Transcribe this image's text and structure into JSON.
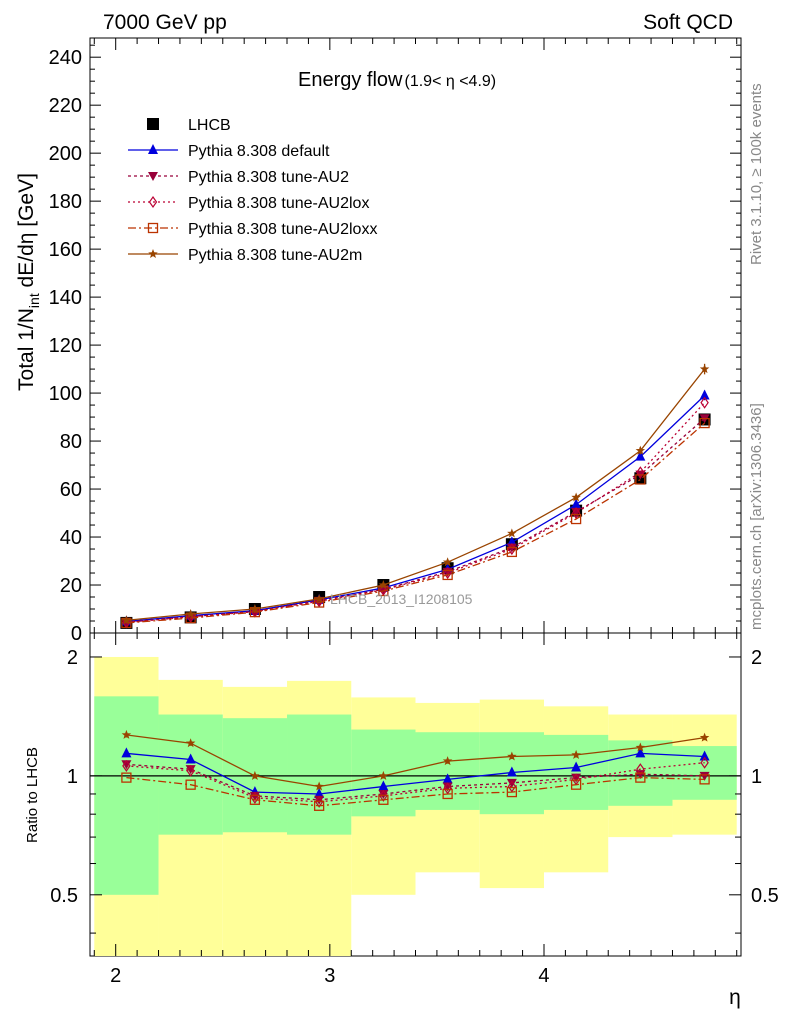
{
  "header": {
    "left": "7000 GeV pp",
    "right": "Soft QCD"
  },
  "side_labels": {
    "rivet": "Rivet 3.1.10, ≥ 100k events",
    "mcplots": "mcplots.cern.ch [arXiv:1306.3436]"
  },
  "chart_data": [
    {
      "type": "line",
      "title": "Energy flow",
      "title_suffix": "(1.9< η <4.9)",
      "ylabel": "Total 1/N",
      "ylabel_sub": "int",
      "ylabel_suffix": " dE/dη [GeV]",
      "watermark": "LHCB_2013_I1208105",
      "xlim": [
        1.88,
        4.92
      ],
      "ylim": [
        0,
        248
      ],
      "x_ticks": [
        2,
        3,
        4
      ],
      "x_tick_labels": [
        "2",
        "3",
        "4"
      ],
      "y_ticks": [
        0,
        20,
        40,
        60,
        80,
        100,
        120,
        140,
        160,
        180,
        200,
        220,
        240
      ],
      "y_tick_labels": [
        "0",
        "20",
        "40",
        "60",
        "80",
        "100",
        "120",
        "140",
        "160",
        "180",
        "200",
        "220",
        "240"
      ],
      "x": [
        2.05,
        2.35,
        2.65,
        2.95,
        3.25,
        3.55,
        3.85,
        4.15,
        4.45,
        4.75
      ],
      "legend_position": "top-left",
      "series": [
        {
          "name": "LHCB",
          "color": "#000000",
          "marker": "square-filled",
          "values": [
            4.2,
            6.5,
            10.0,
            15.0,
            20.0,
            27.0,
            37.0,
            51.0,
            64.5,
            89.0
          ]
        },
        {
          "name": "Pythia 8.308 default",
          "color": "#0000dd",
          "marker": "triangle-up-filled",
          "dash": "",
          "values": [
            4.8,
            7.2,
            9.3,
            13.8,
            18.8,
            26.5,
            37.8,
            53.5,
            73.5,
            99.0
          ]
        },
        {
          "name": "Pythia 8.308 tune-AU2",
          "color": "#99003a",
          "marker": "triangle-down-filled",
          "dash": "3,3",
          "values": [
            4.5,
            6.8,
            9.0,
            13.4,
            18.2,
            25.5,
            35.6,
            50.5,
            66.0,
            89.5
          ]
        },
        {
          "name": "Pythia 8.308 tune-AU2lox",
          "color": "#bb0033",
          "marker": "diamond-open",
          "dash": "2,3",
          "values": [
            4.4,
            6.7,
            8.9,
            13.2,
            18.0,
            25.0,
            35.0,
            50.0,
            67.0,
            96.0
          ]
        },
        {
          "name": "Pythia 8.308 tune-AU2loxx",
          "color": "#bb3300",
          "marker": "square-open",
          "dash": "8,3,2,3",
          "values": [
            4.2,
            6.2,
            8.7,
            12.7,
            17.5,
            24.2,
            33.8,
            47.5,
            64.0,
            87.5
          ]
        },
        {
          "name": "Pythia 8.308 tune-AU2m",
          "color": "#994400",
          "marker": "star",
          "dash": "",
          "values": [
            5.3,
            7.9,
            10.0,
            14.2,
            20.0,
            29.5,
            41.5,
            56.5,
            76.0,
            110.0
          ]
        }
      ]
    },
    {
      "type": "line",
      "ylabel": "Ratio to LHCB",
      "xlabel": "η",
      "log_scale_y": true,
      "ylim": [
        0.35,
        2.3
      ],
      "y_ticks": [
        0.5,
        1,
        2
      ],
      "y_tick_labels": [
        "0.5",
        "1",
        "2"
      ],
      "reference_line": 1,
      "bands": {
        "edges": [
          1.9,
          2.2,
          2.5,
          2.8,
          3.1,
          3.4,
          3.7,
          4.0,
          4.3,
          4.6,
          4.9
        ],
        "inner_lo": [
          0.5,
          0.71,
          0.72,
          0.71,
          0.79,
          0.82,
          0.8,
          0.82,
          0.84,
          0.87
        ],
        "inner_hi": [
          1.59,
          1.43,
          1.4,
          1.43,
          1.31,
          1.29,
          1.29,
          1.27,
          1.23,
          1.19
        ],
        "outer_lo": [
          0.3,
          0.3,
          0.3,
          0.3,
          0.5,
          0.57,
          0.52,
          0.57,
          0.7,
          0.71
        ],
        "outer_hi": [
          2.0,
          1.75,
          1.68,
          1.74,
          1.58,
          1.53,
          1.56,
          1.5,
          1.43,
          1.43
        ],
        "inner_color": "#99ff99",
        "outer_color": "#ffff99"
      },
      "x": [
        2.05,
        2.35,
        2.65,
        2.95,
        3.25,
        3.55,
        3.85,
        4.15,
        4.45,
        4.75
      ],
      "series": [
        {
          "name": "Pythia 8.308 default",
          "values": [
            1.14,
            1.1,
            0.91,
            0.9,
            0.94,
            0.98,
            1.02,
            1.05,
            1.14,
            1.12
          ]
        },
        {
          "name": "Pythia 8.308 tune-AU2",
          "values": [
            1.07,
            1.04,
            0.89,
            0.87,
            0.9,
            0.94,
            0.96,
            0.99,
            1.01,
            1.0
          ]
        },
        {
          "name": "Pythia 8.308 tune-AU2lox",
          "values": [
            1.06,
            1.03,
            0.88,
            0.86,
            0.89,
            0.93,
            0.94,
            0.98,
            1.04,
            1.08
          ]
        },
        {
          "name": "Pythia 8.308 tune-AU2loxx",
          "values": [
            0.99,
            0.95,
            0.87,
            0.84,
            0.87,
            0.9,
            0.91,
            0.95,
            0.99,
            0.98
          ]
        },
        {
          "name": "Pythia 8.308 tune-AU2m",
          "values": [
            1.27,
            1.21,
            1.0,
            0.94,
            1.0,
            1.09,
            1.12,
            1.13,
            1.18,
            1.25
          ]
        }
      ]
    }
  ]
}
